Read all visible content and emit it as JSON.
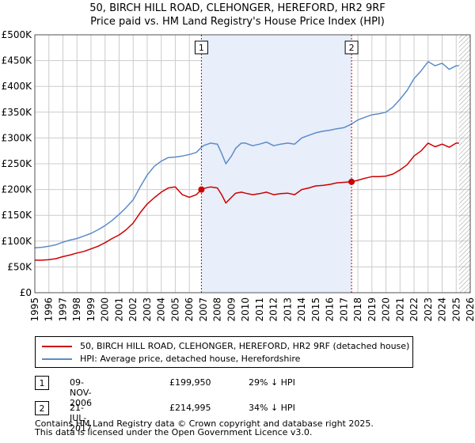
{
  "colors": {
    "property": "#cc0000",
    "hpi": "#5b8cc8",
    "shade": "#e8eefa",
    "grid": "#cccccc",
    "marker_line": "#cc0000"
  },
  "title_line1": "50, BIRCH HILL ROAD, CLEHONGER, HEREFORD, HR2 9RF",
  "title_line2": "Price paid vs. HM Land Registry's House Price Index (HPI)",
  "chart_data": {
    "type": "line",
    "title": "50, BIRCH HILL ROAD, CLEHONGER, HEREFORD, HR2 9RF — Price paid vs. HM Land Registry's House Price Index (HPI)",
    "xlim": [
      1995,
      2026
    ],
    "ylim": [
      0,
      500000
    ],
    "x_ticks": [
      "1995",
      "1996",
      "1997",
      "1998",
      "1999",
      "2000",
      "2001",
      "2002",
      "2003",
      "2004",
      "2005",
      "2006",
      "2007",
      "2008",
      "2009",
      "2010",
      "2011",
      "2012",
      "2013",
      "2014",
      "2015",
      "2016",
      "2017",
      "2018",
      "2019",
      "2020",
      "2021",
      "2022",
      "2023",
      "2024",
      "2025",
      "2026"
    ],
    "y_ticks": [
      {
        "value": 0,
        "label": "£0"
      },
      {
        "value": 50000,
        "label": "£50K"
      },
      {
        "value": 100000,
        "label": "£100K"
      },
      {
        "value": 150000,
        "label": "£150K"
      },
      {
        "value": 200000,
        "label": "£200K"
      },
      {
        "value": 250000,
        "label": "£250K"
      },
      {
        "value": 300000,
        "label": "£300K"
      },
      {
        "value": 350000,
        "label": "£350K"
      },
      {
        "value": 400000,
        "label": "£400K"
      },
      {
        "value": 450000,
        "label": "£450K"
      },
      {
        "value": 500000,
        "label": "£500K"
      }
    ],
    "shaded_range": [
      2006.86,
      2017.55
    ],
    "hatched_from": 2025.2,
    "markers": [
      {
        "label": "1",
        "x": 2006.86,
        "y": 199950
      },
      {
        "label": "2",
        "x": 2017.55,
        "y": 214995
      }
    ],
    "series": [
      {
        "name": "50, BIRCH HILL ROAD, CLEHONGER, HEREFORD, HR2 9RF (detached house)",
        "color": "#cc0000",
        "x": [
          1995,
          1995.5,
          1996,
          1996.5,
          1997,
          1997.5,
          1998,
          1998.5,
          1999,
          1999.5,
          2000,
          2000.5,
          2001,
          2001.5,
          2002,
          2002.5,
          2003,
          2003.5,
          2004,
          2004.5,
          2005,
          2005.5,
          2006,
          2006.5,
          2006.86,
          2007,
          2007.5,
          2008,
          2008.3,
          2008.6,
          2009,
          2009.3,
          2009.7,
          2010,
          2010.5,
          2011,
          2011.5,
          2012,
          2012.5,
          2013,
          2013.5,
          2014,
          2014.5,
          2015,
          2015.5,
          2016,
          2016.5,
          2017,
          2017.55,
          2018,
          2018.5,
          2019,
          2019.5,
          2020,
          2020.5,
          2021,
          2021.5,
          2022,
          2022.5,
          2023,
          2023.5,
          2024,
          2024.5,
          2025,
          2025.2
        ],
        "values": [
          63000,
          63000,
          64000,
          66000,
          70000,
          73000,
          77000,
          80000,
          85000,
          90000,
          97000,
          105000,
          112000,
          122000,
          135000,
          155000,
          172000,
          184000,
          195000,
          203000,
          205000,
          190000,
          185000,
          190000,
          199950,
          202000,
          205000,
          203000,
          190000,
          174000,
          185000,
          193000,
          195000,
          193000,
          190000,
          192000,
          195000,
          190000,
          192000,
          193000,
          190000,
          200000,
          203000,
          207000,
          208000,
          210000,
          213000,
          214000,
          214995,
          218000,
          222000,
          225000,
          225000,
          226000,
          230000,
          238000,
          248000,
          265000,
          275000,
          290000,
          283000,
          288000,
          282000,
          290000,
          290000
        ]
      },
      {
        "name": "HPI: Average price, detached house, Herefordshire",
        "color": "#5b8cc8",
        "x": [
          1995,
          1995.5,
          1996,
          1996.5,
          1997,
          1997.5,
          1998,
          1998.5,
          1999,
          1999.5,
          2000,
          2000.5,
          2001,
          2001.5,
          2002,
          2002.5,
          2003,
          2003.5,
          2004,
          2004.5,
          2005,
          2005.5,
          2006,
          2006.5,
          2006.86,
          2007,
          2007.5,
          2008,
          2008.3,
          2008.6,
          2009,
          2009.3,
          2009.7,
          2010,
          2010.5,
          2011,
          2011.5,
          2012,
          2012.5,
          2013,
          2013.5,
          2014,
          2014.5,
          2015,
          2015.5,
          2016,
          2016.5,
          2017,
          2017.55,
          2018,
          2018.5,
          2019,
          2019.5,
          2020,
          2020.5,
          2021,
          2021.5,
          2022,
          2022.5,
          2023,
          2023.5,
          2024,
          2024.5,
          2025,
          2025.2
        ],
        "values": [
          87000,
          88000,
          90000,
          93000,
          98000,
          102000,
          105000,
          110000,
          115000,
          122000,
          130000,
          140000,
          152000,
          165000,
          180000,
          205000,
          228000,
          245000,
          255000,
          262000,
          263000,
          265000,
          268000,
          272000,
          282000,
          285000,
          290000,
          288000,
          270000,
          250000,
          265000,
          280000,
          290000,
          290000,
          285000,
          288000,
          292000,
          285000,
          288000,
          290000,
          288000,
          300000,
          305000,
          310000,
          313000,
          315000,
          318000,
          320000,
          327000,
          335000,
          340000,
          345000,
          347000,
          350000,
          360000,
          375000,
          392000,
          415000,
          430000,
          448000,
          440000,
          445000,
          433000,
          440000,
          440000
        ]
      }
    ]
  },
  "legend": {
    "property_label": "50, BIRCH HILL ROAD, CLEHONGER, HEREFORD, HR2 9RF (detached house)",
    "hpi_label": "HPI: Average price, detached house, Herefordshire"
  },
  "sales": [
    {
      "num": "1",
      "date": "09-NOV-2006",
      "price": "£199,950",
      "hpi_diff": "29% ↓ HPI"
    },
    {
      "num": "2",
      "date": "21-JUL-2017",
      "price": "£214,995",
      "hpi_diff": "34% ↓ HPI"
    }
  ],
  "footer_line1": "Contains HM Land Registry data © Crown copyright and database right 2025.",
  "footer_line2": "This data is licensed under the Open Government Licence v3.0."
}
